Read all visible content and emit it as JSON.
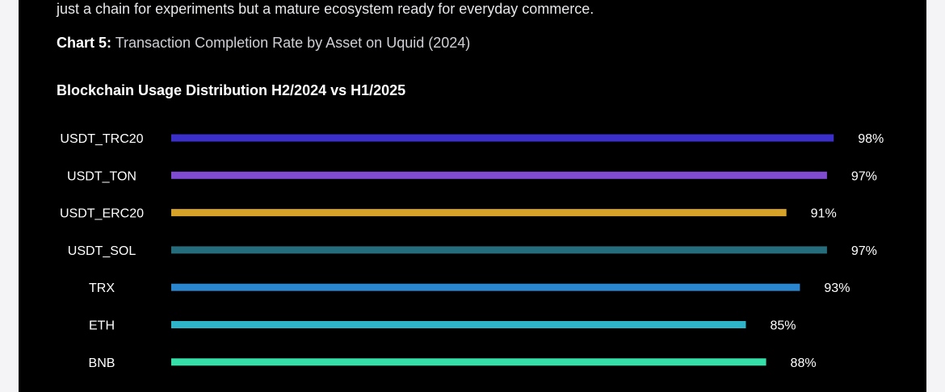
{
  "intro_text": "just a chain for experiments but a mature ecosystem ready for everyday commerce.",
  "caption": {
    "label": "Chart 5:",
    "text": " Transaction Completion Rate by Asset on Uquid (2024)"
  },
  "chart_data": {
    "type": "bar",
    "orientation": "horizontal",
    "title": "Blockchain Usage Distribution H2/2024 vs H1/2025",
    "categories": [
      "USDT_TRC20",
      "USDT_TON",
      "USDT_ERC20",
      "USDT_SOL",
      "TRX",
      "ETH",
      "BNB"
    ],
    "values": [
      98,
      97,
      91,
      97,
      93,
      85,
      88
    ],
    "value_labels": [
      "98%",
      "97%",
      "91%",
      "97%",
      "93%",
      "85%",
      "88%"
    ],
    "unit": "%",
    "colors": [
      "#3b2fc9",
      "#7f4bd1",
      "#d6a228",
      "#256d7c",
      "#2a86cf",
      "#2eb4c8",
      "#35e0a8"
    ],
    "grid": false,
    "legend": "none"
  },
  "colors": {
    "background": "#000000",
    "text": "#ffffff"
  }
}
